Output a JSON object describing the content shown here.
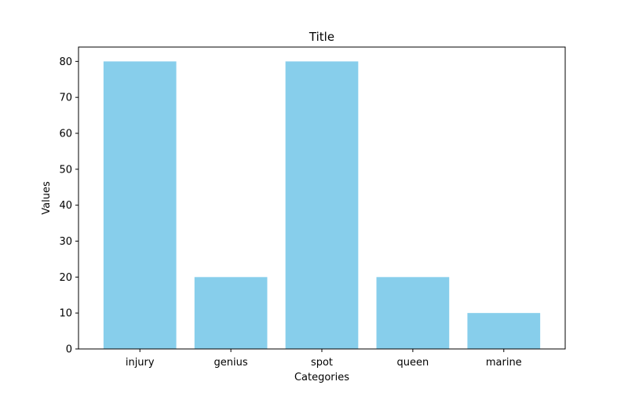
{
  "chart_data": {
    "type": "bar",
    "title": "Title",
    "xlabel": "Categories",
    "ylabel": "Values",
    "categories": [
      "injury",
      "genius",
      "spot",
      "queen",
      "marine"
    ],
    "values": [
      80,
      20,
      80,
      20,
      10
    ],
    "ylim": [
      0,
      84
    ],
    "yticks": [
      0,
      10,
      20,
      30,
      40,
      50,
      60,
      70,
      80
    ],
    "grid": false,
    "legend": "none",
    "bar_color": "#87ceeb"
  }
}
